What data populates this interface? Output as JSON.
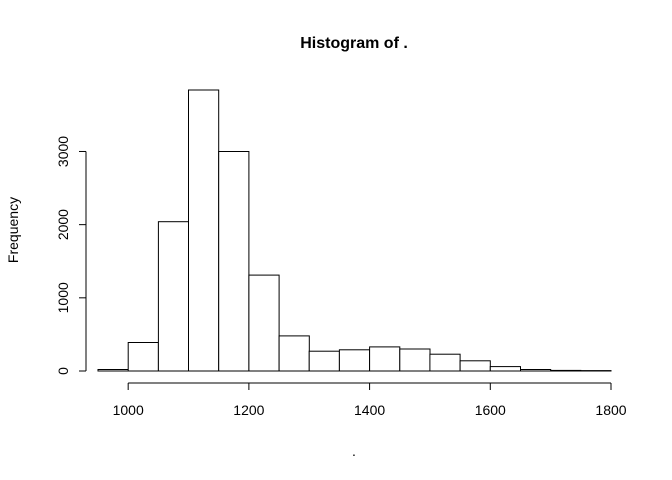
{
  "chart_data": {
    "type": "bar",
    "title": "Histogram of .",
    "xlabel": ".",
    "ylabel": "Frequency",
    "bin_edges": [
      950,
      1000,
      1050,
      1100,
      1150,
      1200,
      1250,
      1300,
      1350,
      1400,
      1450,
      1500,
      1550,
      1600,
      1650,
      1700,
      1750,
      1800
    ],
    "values": [
      20,
      390,
      2040,
      3840,
      3000,
      1310,
      480,
      270,
      290,
      330,
      300,
      230,
      140,
      60,
      20,
      8,
      5
    ],
    "xlim": [
      950,
      1800
    ],
    "ylim": [
      0,
      3840
    ],
    "x_ticks": [
      1000,
      1200,
      1400,
      1600,
      1800
    ],
    "y_ticks": [
      0,
      1000,
      2000,
      3000
    ],
    "x_tick_labels": [
      "1000",
      "1200",
      "1400",
      "1600",
      "1800"
    ],
    "y_tick_labels": [
      "0",
      "1000",
      "2000",
      "3000"
    ],
    "grid": false,
    "bar_fill": "#ffffff",
    "bar_stroke": "#000000"
  }
}
